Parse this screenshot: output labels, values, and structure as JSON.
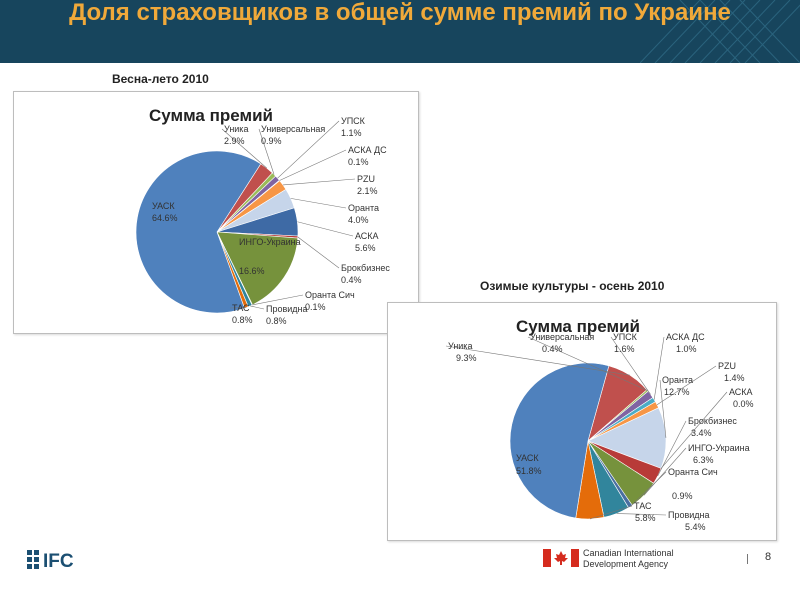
{
  "header": {
    "title": "Доля страховщиков в общей сумме премий по Украине"
  },
  "colors": {
    "header_bg": "#17455d",
    "title": "#f0a93a"
  },
  "chart_data": [
    {
      "type": "pie",
      "subtitle": "Весна-лето 2010",
      "title": "Сумма премий",
      "slices": [
        {
          "name": "Уника",
          "value": 2.9,
          "label": "2.9%",
          "color": "#c0504d"
        },
        {
          "name": "Универсальная",
          "value": 0.9,
          "label": "0.9%",
          "color": "#9bbb59"
        },
        {
          "name": "УПСК",
          "value": 1.1,
          "label": "1.1%",
          "color": "#8064a2"
        },
        {
          "name": "АСКА ДС",
          "value": 0.1,
          "label": "0.1%",
          "color": "#4bacc6"
        },
        {
          "name": "PZU",
          "value": 2.1,
          "label": "2.1%",
          "color": "#f79646"
        },
        {
          "name": "Оранта",
          "value": 4.0,
          "label": "4.0%",
          "color": "#c6d5ea"
        },
        {
          "name": "АСКА",
          "value": 5.6,
          "label": "5.6%",
          "color": "#3e6aa5"
        },
        {
          "name": "Брокбизнес",
          "value": 0.4,
          "label": "0.4%",
          "color": "#b83b38"
        },
        {
          "name": "ИНГО-Украина",
          "value": 16.6,
          "label": "16.6%",
          "color": "#76923c"
        },
        {
          "name": "Оранта Сич",
          "value": 0.1,
          "label": "0.1%",
          "color": "#5f497a"
        },
        {
          "name": "Провидна",
          "value": 0.8,
          "label": "0.8%",
          "color": "#31859c"
        },
        {
          "name": "ТАС",
          "value": 0.8,
          "label": "0.8%",
          "color": "#e46c0a"
        },
        {
          "name": "УАСК",
          "value": 64.6,
          "label": "64.6%",
          "color": "#4f81bd"
        }
      ]
    },
    {
      "type": "pie",
      "subtitle": "Озимые культуры - осень 2010",
      "title": "Сумма премий",
      "slices": [
        {
          "name": "Уника",
          "value": 9.3,
          "label": "9.3%",
          "color": "#c0504d"
        },
        {
          "name": "Универсальная",
          "value": 0.4,
          "label": "0.4%",
          "color": "#9bbb59"
        },
        {
          "name": "УПСК",
          "value": 1.6,
          "label": "1.6%",
          "color": "#8064a2"
        },
        {
          "name": "АСКА ДС",
          "value": 1.0,
          "label": "1.0%",
          "color": "#4bacc6"
        },
        {
          "name": "PZU",
          "value": 1.4,
          "label": "1.4%",
          "color": "#f79646"
        },
        {
          "name": "Оранта",
          "value": 12.7,
          "label": "12.7%",
          "color": "#c6d5ea"
        },
        {
          "name": "АСКА",
          "value": 0.0,
          "label": "0.0%",
          "color": "#3e6aa5"
        },
        {
          "name": "Брокбизнес",
          "value": 3.4,
          "label": "3.4%",
          "color": "#b83b38"
        },
        {
          "name": "ИНГО-Украина",
          "value": 6.3,
          "label": "6.3%",
          "color": "#76923c"
        },
        {
          "name": "Оранта Сич",
          "value": 0.9,
          "label": "0.9%",
          "color": "#4a6fa0"
        },
        {
          "name": "Провидна",
          "value": 5.4,
          "label": "5.4%",
          "color": "#31859c"
        },
        {
          "name": "ТАС",
          "value": 5.8,
          "label": "5.8%",
          "color": "#e46c0a"
        },
        {
          "name": "УАСК",
          "value": 51.8,
          "label": "51.8%",
          "color": "#4f81bd"
        }
      ]
    }
  ],
  "footer": {
    "logo_text": "IFC",
    "cida_line1": "Canadian International",
    "cida_line2": "Development Agency",
    "page_number": "8"
  }
}
